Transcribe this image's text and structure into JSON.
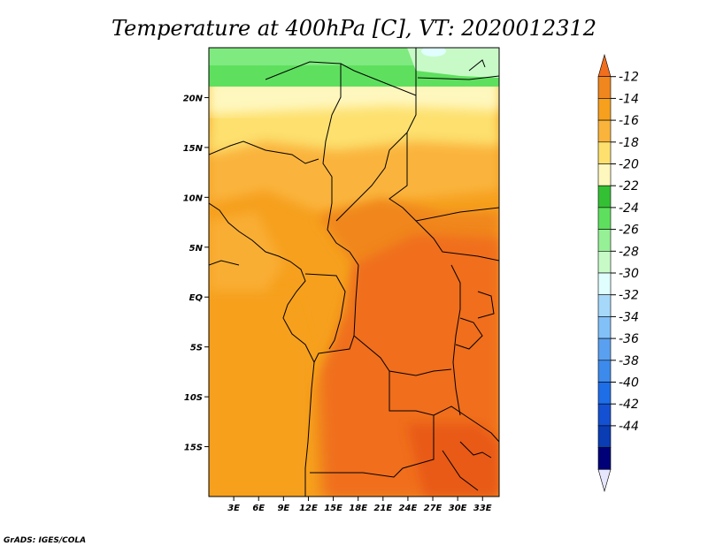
{
  "chart_data": {
    "type": "heatmap",
    "title": "Temperature at 400hPa [C], VT: 2020012312",
    "variable": "Temperature at 400hPa",
    "units": "C",
    "valid_time": "2020012312",
    "x_ticks": [
      "3E",
      "6E",
      "9E",
      "12E",
      "15E",
      "18E",
      "21E",
      "24E",
      "27E",
      "30E",
      "33E"
    ],
    "x_tick_values": [
      3,
      6,
      9,
      12,
      15,
      18,
      21,
      24,
      27,
      30,
      33
    ],
    "y_ticks": [
      "20N",
      "15N",
      "10N",
      "5N",
      "EQ",
      "5S",
      "10S",
      "15S"
    ],
    "y_tick_values": [
      20,
      15,
      10,
      5,
      0,
      -5,
      -10,
      -15
    ],
    "xlim": [
      0,
      35
    ],
    "ylim": [
      -20,
      25
    ],
    "colorbar": {
      "labels": [
        "-12",
        "-14",
        "-16",
        "-18",
        "-20",
        "-22",
        "-24",
        "-26",
        "-28",
        "-30",
        "-32",
        "-34",
        "-36",
        "-38",
        "-40",
        "-42",
        "-44"
      ],
      "colors": [
        "#f06e1e",
        "#f0861e",
        "#f6a01e",
        "#fab43c",
        "#fde06e",
        "#fef7be",
        "#34c034",
        "#5ee05e",
        "#96f096",
        "#c8fac8",
        "#e0fefe",
        "#a6d8fa",
        "#82c0f8",
        "#5aa0f0",
        "#3c8aec",
        "#1e6ee8",
        "#1450d2",
        "#0a3cb4",
        "#000078",
        "#e6e6fe"
      ]
    },
    "regions_sample": [
      {
        "lat_range": [
          22,
          25
        ],
        "value_range": "-22 to -26",
        "note": "green bands north"
      },
      {
        "lat_range": [
          17,
          22
        ],
        "value_range": "-18 to -20"
      },
      {
        "lat_range": [
          8,
          17
        ],
        "value_range": "-16 to -18"
      },
      {
        "lat_range": [
          -20,
          8
        ],
        "value_range": "-12 to -16",
        "note": "warmest in south-east"
      }
    ]
  },
  "credit": "GrADS: IGES/COLA"
}
